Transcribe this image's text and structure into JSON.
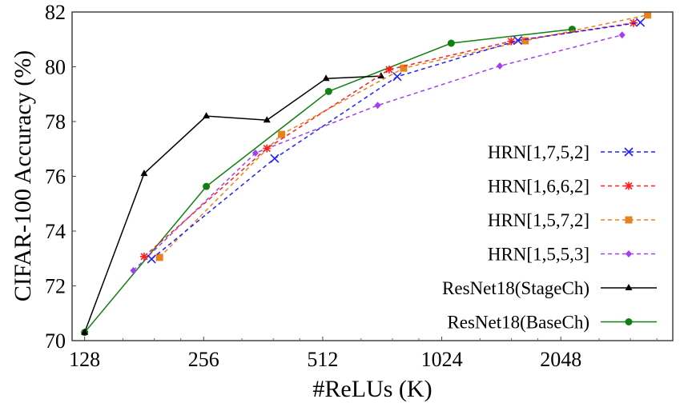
{
  "chart_data": {
    "type": "line",
    "title": "",
    "xlabel": "#ReLUs (K)",
    "ylabel": "CIFAR-100 Accuracy (%)",
    "xscale": "log2",
    "xlim": [
      119,
      3930
    ],
    "ylim": [
      70,
      82
    ],
    "xticks": [
      128,
      256,
      512,
      1024,
      2048
    ],
    "xtick_labels": [
      "128",
      "256",
      "512",
      "1024",
      "2048"
    ],
    "yticks": [
      70,
      72,
      74,
      76,
      78,
      80,
      82
    ],
    "ytick_labels": [
      "70",
      "72",
      "74",
      "76",
      "78",
      "80",
      "82"
    ],
    "grid": false,
    "legend_position": "right",
    "series": [
      {
        "name": "HRN[1,7,5,2]",
        "color": "#1f1fff",
        "dash": true,
        "marker": "x",
        "x": [
          189,
          387,
          790,
          1595,
          3255
        ],
        "y": [
          72.98,
          76.65,
          79.64,
          80.96,
          81.62
        ]
      },
      {
        "name": "HRN[1,6,6,2]",
        "color": "#ff1f1f",
        "dash": true,
        "marker": "asterisk",
        "x": [
          181,
          370,
          754,
          1535,
          3127
        ],
        "y": [
          73.07,
          77.02,
          79.9,
          80.93,
          81.6
        ]
      },
      {
        "name": "HRN[1,5,7,2]",
        "color": "#e8821e",
        "dash": true,
        "marker": "square",
        "x": [
          198,
          403,
          820,
          1664,
          3394
        ],
        "y": [
          73.04,
          77.53,
          79.95,
          80.95,
          81.89
        ]
      },
      {
        "name": "HRN[1,5,5,3]",
        "color": "#a040f0",
        "dash": true,
        "marker": "diamond",
        "x": [
          170,
          346,
          705,
          1436,
          2926
        ],
        "y": [
          72.56,
          76.85,
          78.59,
          80.03,
          81.16
        ]
      },
      {
        "name": "ResNet18(StageCh)",
        "color": "#000000",
        "dash": false,
        "marker": "triangle",
        "x": [
          128,
          181,
          260,
          370,
          522,
          719
        ],
        "y": [
          70.3,
          76.1,
          78.2,
          78.05,
          79.57,
          79.66
        ]
      },
      {
        "name": "ResNet18(BaseCh)",
        "color": "#108010",
        "dash": false,
        "marker": "circle",
        "x": [
          128,
          260,
          530,
          1082,
          2188
        ],
        "y": [
          70.3,
          75.63,
          79.1,
          80.86,
          81.37
        ]
      }
    ]
  }
}
